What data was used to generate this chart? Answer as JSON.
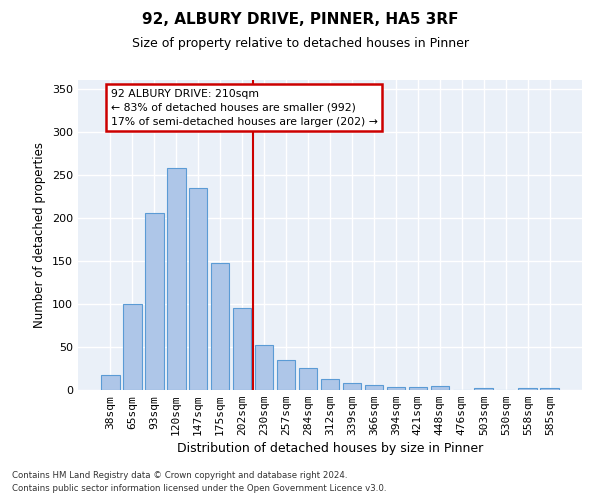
{
  "title1": "92, ALBURY DRIVE, PINNER, HA5 3RF",
  "title2": "Size of property relative to detached houses in Pinner",
  "xlabel": "Distribution of detached houses by size in Pinner",
  "ylabel": "Number of detached properties",
  "categories": [
    "38sqm",
    "65sqm",
    "93sqm",
    "120sqm",
    "147sqm",
    "175sqm",
    "202sqm",
    "230sqm",
    "257sqm",
    "284sqm",
    "312sqm",
    "339sqm",
    "366sqm",
    "394sqm",
    "421sqm",
    "448sqm",
    "476sqm",
    "503sqm",
    "530sqm",
    "558sqm",
    "585sqm"
  ],
  "values": [
    18,
    100,
    205,
    258,
    235,
    148,
    95,
    52,
    35,
    25,
    13,
    8,
    6,
    4,
    4,
    5,
    0,
    2,
    0,
    2,
    2
  ],
  "bar_color": "#aec6e8",
  "bar_edge_color": "#5b9bd5",
  "background_color": "#eaf0f8",
  "grid_color": "#ffffff",
  "vline_x": 6.5,
  "vline_color": "#cc0000",
  "annotation_text": "92 ALBURY DRIVE: 210sqm\n← 83% of detached houses are smaller (992)\n17% of semi-detached houses are larger (202) →",
  "annotation_box_color": "#cc0000",
  "ylim": [
    0,
    360
  ],
  "yticks": [
    0,
    50,
    100,
    150,
    200,
    250,
    300,
    350
  ],
  "footer1": "Contains HM Land Registry data © Crown copyright and database right 2024.",
  "footer2": "Contains public sector information licensed under the Open Government Licence v3.0."
}
